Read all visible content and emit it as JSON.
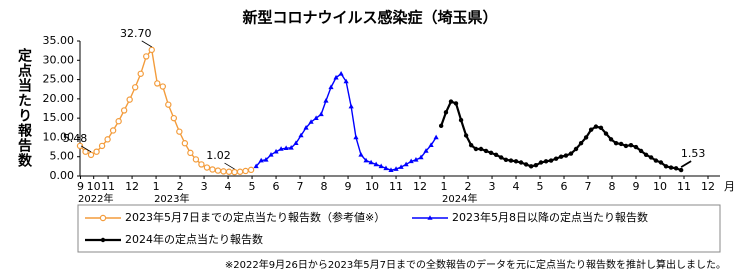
{
  "chart_data": {
    "type": "line",
    "title": "新型コロナウイルス感染症（埼玉県）",
    "y_label": "定点当たり報告数",
    "x_unit": "月",
    "footnote": "※2022年9月26日から2023年5月7日までの全数報告のデータを元に定点当たり報告数を推計し算出しました。",
    "grid": false,
    "ylim": [
      0,
      35
    ],
    "yticks": [
      {
        "value": 0,
        "label": "0.00"
      },
      {
        "value": 5,
        "label": "5.00"
      },
      {
        "value": 10,
        "label": "10.00"
      },
      {
        "value": 15,
        "label": "15.00"
      },
      {
        "value": 20,
        "label": "20.00"
      },
      {
        "value": 25,
        "label": "25.00"
      },
      {
        "value": 30,
        "label": "30.00"
      },
      {
        "value": 35,
        "label": "35.00"
      }
    ],
    "xlim": [
      0.83,
      27.5
    ],
    "xticks": [
      {
        "value": 0.85,
        "label": "9"
      },
      {
        "value": 1.4,
        "label": "10"
      },
      {
        "value": 2,
        "label": "11"
      },
      {
        "value": 3,
        "label": "12"
      },
      {
        "value": 4,
        "label": "1"
      },
      {
        "value": 5,
        "label": "2"
      },
      {
        "value": 6,
        "label": "3"
      },
      {
        "value": 7,
        "label": "4"
      },
      {
        "value": 8,
        "label": "5"
      },
      {
        "value": 9,
        "label": "6"
      },
      {
        "value": 10,
        "label": "7"
      },
      {
        "value": 11,
        "label": "8"
      },
      {
        "value": 12,
        "label": "9"
      },
      {
        "value": 13,
        "label": "10"
      },
      {
        "value": 14,
        "label": "11"
      },
      {
        "value": 15,
        "label": "12"
      },
      {
        "value": 16,
        "label": "1"
      },
      {
        "value": 17,
        "label": "2"
      },
      {
        "value": 18,
        "label": "3"
      },
      {
        "value": 19,
        "label": "4"
      },
      {
        "value": 20,
        "label": "5"
      },
      {
        "value": 21,
        "label": "6"
      },
      {
        "value": 22,
        "label": "7"
      },
      {
        "value": 23,
        "label": "8"
      },
      {
        "value": 24,
        "label": "9"
      },
      {
        "value": 25,
        "label": "10"
      },
      {
        "value": 26,
        "label": "11"
      },
      {
        "value": 27,
        "label": "12"
      }
    ],
    "year_labels": [
      {
        "x": 0.83,
        "label": "2022年"
      },
      {
        "x": 4,
        "label": "2023年"
      },
      {
        "x": 16,
        "label": "2024年"
      }
    ],
    "series": [
      {
        "name": "2023年5月7日までの定点当たり報告数（参考値※）",
        "color": "#f39c3c",
        "marker": "circle-open",
        "x": [
          0.83,
          1.06,
          1.29,
          1.52,
          1.75,
          1.98,
          2.21,
          2.44,
          2.67,
          2.9,
          3.13,
          3.36,
          3.59,
          3.82,
          4.05,
          4.28,
          4.51,
          4.74,
          4.97,
          5.2,
          5.43,
          5.66,
          5.89,
          6.12,
          6.35,
          6.58,
          6.81,
          7.04,
          7.27,
          7.5,
          7.73,
          7.96
        ],
        "values": [
          7.8,
          6.3,
          5.48,
          6.3,
          7.8,
          9.5,
          11.8,
          14.2,
          17.0,
          19.8,
          23.0,
          26.5,
          31.0,
          32.7,
          24.0,
          23.2,
          18.5,
          15.0,
          11.5,
          8.5,
          6.0,
          4.3,
          3.0,
          2.2,
          1.7,
          1.4,
          1.2,
          1.1,
          1.02,
          1.1,
          1.3,
          1.6
        ],
        "value_labels": [
          null,
          null,
          "5.48",
          null,
          null,
          null,
          null,
          null,
          null,
          null,
          null,
          null,
          null,
          "32.70",
          null,
          null,
          null,
          null,
          null,
          null,
          null,
          null,
          null,
          null,
          null,
          null,
          null,
          null,
          "1.02",
          null,
          null,
          null
        ]
      },
      {
        "name": "2023年5月8日以降の定点当たり報告数",
        "color": "#0000ff",
        "marker": "triangle",
        "x": [
          8.17,
          8.38,
          8.58,
          8.79,
          9.0,
          9.21,
          9.42,
          9.63,
          9.83,
          10.04,
          10.25,
          10.46,
          10.67,
          10.88,
          11.08,
          11.29,
          11.5,
          11.71,
          11.92,
          12.13,
          12.33,
          12.54,
          12.75,
          12.96,
          13.17,
          13.38,
          13.58,
          13.79,
          14.0,
          14.21,
          14.42,
          14.63,
          14.83,
          15.04,
          15.25,
          15.46,
          15.67
        ],
        "values": [
          2.5,
          4.0,
          4.2,
          5.5,
          6.3,
          7.0,
          7.2,
          7.3,
          8.5,
          10.5,
          12.5,
          14.0,
          15.0,
          16.0,
          19.5,
          23.0,
          25.5,
          26.5,
          24.5,
          18,
          10,
          5.5,
          4.0,
          3.5,
          3.0,
          2.5,
          2.0,
          1.5,
          1.8,
          2.3,
          3.0,
          3.8,
          4.2,
          4.8,
          6.5,
          8.0,
          10.0
        ]
      },
      {
        "name": "2024年の定点当たり報告数",
        "color": "#000000",
        "marker": "circle",
        "x": [
          15.88,
          16.08,
          16.29,
          16.5,
          16.71,
          16.92,
          17.13,
          17.33,
          17.54,
          17.75,
          17.96,
          18.17,
          18.38,
          18.58,
          18.79,
          19.0,
          19.21,
          19.42,
          19.63,
          19.83,
          20.04,
          20.25,
          20.46,
          20.67,
          20.88,
          21.08,
          21.29,
          21.5,
          21.71,
          21.92,
          22.13,
          22.33,
          22.54,
          22.75,
          22.96,
          23.17,
          23.38,
          23.58,
          23.79,
          24.0,
          24.21,
          24.42,
          24.63,
          24.83,
          25.04,
          25.25,
          25.46,
          25.67,
          25.88
        ],
        "values": [
          13,
          16.5,
          19.3,
          18.8,
          14.5,
          10.5,
          8.0,
          7.0,
          7.0,
          6.5,
          6.0,
          5.5,
          4.8,
          4.2,
          4.0,
          3.8,
          3.5,
          3.0,
          2.5,
          2.8,
          3.5,
          3.8,
          4.0,
          4.5,
          5.0,
          5.3,
          5.8,
          7.0,
          8.5,
          10.0,
          12.0,
          12.8,
          12.5,
          11.0,
          9.5,
          8.5,
          8.3,
          7.8,
          8.0,
          7.5,
          6.5,
          5.5,
          4.8,
          4.0,
          3.5,
          2.5,
          2.2,
          2.0,
          1.53
        ],
        "value_labels": [
          null,
          null,
          null,
          null,
          null,
          null,
          null,
          null,
          null,
          null,
          null,
          null,
          null,
          null,
          null,
          null,
          null,
          null,
          null,
          null,
          null,
          null,
          null,
          null,
          null,
          null,
          null,
          null,
          null,
          null,
          null,
          null,
          null,
          null,
          null,
          null,
          null,
          null,
          null,
          null,
          null,
          null,
          null,
          null,
          null,
          null,
          null,
          null,
          "1.53"
        ]
      }
    ]
  }
}
